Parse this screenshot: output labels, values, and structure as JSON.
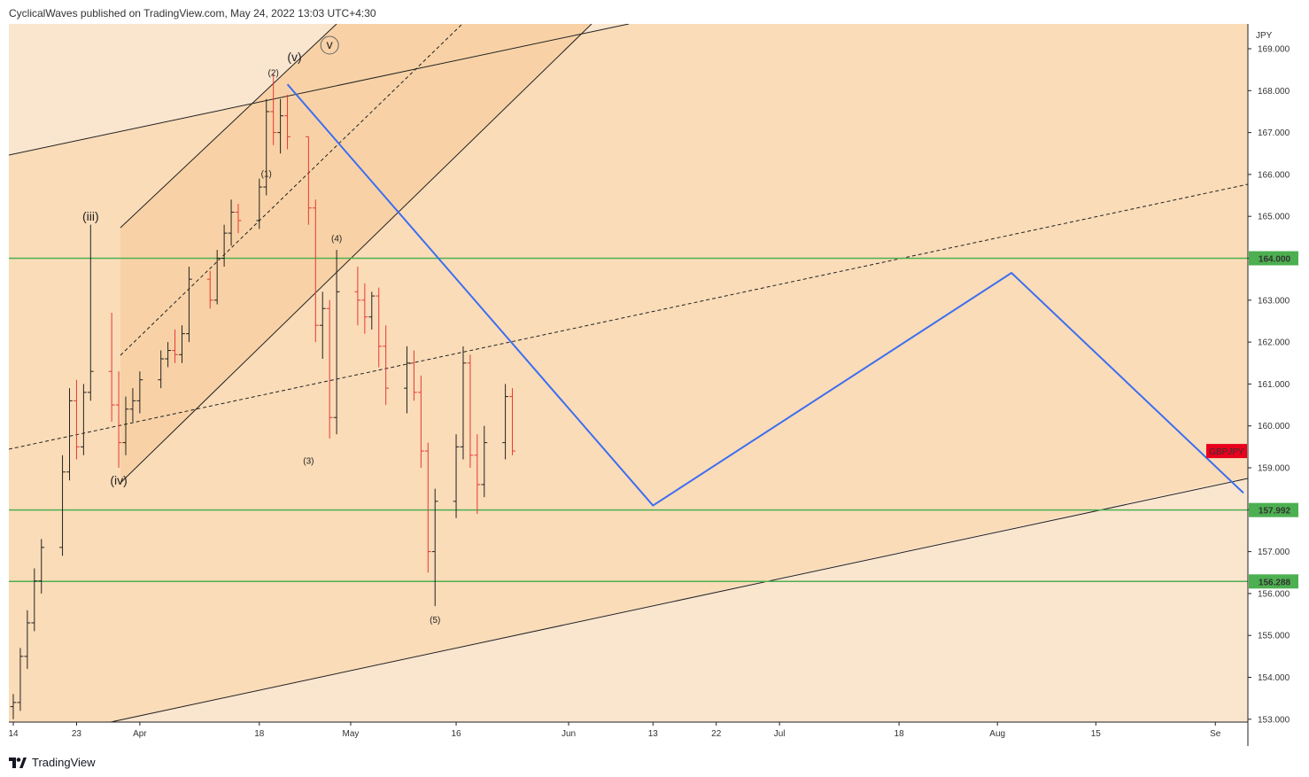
{
  "header": {
    "text": "CyclicalWaves published on TradingView.com, May 24, 2022 13:03 UTC+4:30"
  },
  "footer": {
    "brand": "TradingView"
  },
  "colors": {
    "plot_bg": "#fadcb8",
    "outer_band": "#fae5cf",
    "inner_channel": "#f8d2a6",
    "green_level": "#4caf50",
    "projection": "#3d6ef0",
    "candle_up": "#222222",
    "candle_down": "#e53935",
    "symbol_badge": "#e8001c"
  },
  "chart_data": {
    "type": "candlestick",
    "symbol": "GBPJPY",
    "currency": "JPY",
    "ylim": [
      153,
      169.5
    ],
    "y_ticks": [
      "169.000",
      "168.000",
      "167.000",
      "166.000",
      "165.000",
      "164.000",
      "163.000",
      "162.000",
      "161.000",
      "160.000",
      "159.000",
      "158.000",
      "157.000",
      "156.000",
      "155.000",
      "154.000",
      "153.000"
    ],
    "x_ticks": [
      "14",
      "23",
      "Apr",
      "18",
      "May",
      "16",
      "Jun",
      "13",
      "22",
      "Jul",
      "18",
      "Aug",
      "15",
      "Se"
    ],
    "horizontal_levels": [
      {
        "label": "164.000",
        "value": 164.0
      },
      {
        "label": "157.992",
        "value": 157.992
      },
      {
        "label": "156.288",
        "value": 156.288
      }
    ],
    "price_label": {
      "label": "GBPJPY",
      "value": 159.4
    },
    "wave_labels": [
      {
        "text": "(iii)",
        "date": "2022-03-25",
        "price": 164.9
      },
      {
        "text": "(iv)",
        "date": "2022-03-29",
        "price": 158.6
      },
      {
        "text": "(2)",
        "date": "2022-04-20",
        "price": 168.35
      },
      {
        "text": "(v)",
        "date": "2022-04-23",
        "price": 168.7
      },
      {
        "text": "v",
        "date": "2022-04-28",
        "price": 169.0
      },
      {
        "text": "(1)",
        "date": "2022-04-19",
        "price": 165.95
      },
      {
        "text": "(4)",
        "date": "2022-04-29",
        "price": 164.4
      },
      {
        "text": "(3)",
        "date": "2022-04-25",
        "price": 159.1
      },
      {
        "text": "(5)",
        "date": "2022-05-13",
        "price": 155.3
      }
    ],
    "projection_path": [
      {
        "date": "2022-04-22",
        "price": 168.15
      },
      {
        "date": "2022-06-13",
        "price": 158.1
      },
      {
        "date": "2022-08-03",
        "price": 163.65
      },
      {
        "date": "2022-09-05",
        "price": 158.4
      }
    ],
    "candles": [
      {
        "date": "2022-03-14",
        "open": 153.3,
        "high": 153.6,
        "low": 153.0,
        "close": 153.4
      },
      {
        "date": "2022-03-15",
        "open": 153.4,
        "high": 154.7,
        "low": 153.2,
        "close": 154.5
      },
      {
        "date": "2022-03-16",
        "open": 154.5,
        "high": 155.6,
        "low": 154.2,
        "close": 155.3
      },
      {
        "date": "2022-03-17",
        "open": 155.3,
        "high": 156.6,
        "low": 155.1,
        "close": 156.3
      },
      {
        "date": "2022-03-18",
        "open": 156.3,
        "high": 157.3,
        "low": 156.0,
        "close": 157.1
      },
      {
        "date": "2022-03-21",
        "open": 157.1,
        "high": 159.3,
        "low": 156.9,
        "close": 158.9
      },
      {
        "date": "2022-03-22",
        "open": 158.9,
        "high": 160.9,
        "low": 158.7,
        "close": 160.6
      },
      {
        "date": "2022-03-23",
        "open": 160.6,
        "high": 161.1,
        "low": 159.2,
        "close": 159.5
      },
      {
        "date": "2022-03-24",
        "open": 159.5,
        "high": 161.0,
        "low": 159.3,
        "close": 160.8
      },
      {
        "date": "2022-03-25",
        "open": 160.8,
        "high": 164.8,
        "low": 160.6,
        "close": 161.3
      },
      {
        "date": "2022-03-28",
        "open": 161.3,
        "high": 162.7,
        "low": 160.1,
        "close": 160.5
      },
      {
        "date": "2022-03-29",
        "open": 160.5,
        "high": 161.3,
        "low": 159.0,
        "close": 159.6
      },
      {
        "date": "2022-03-30",
        "open": 159.6,
        "high": 160.7,
        "low": 159.3,
        "close": 160.4
      },
      {
        "date": "2022-03-31",
        "open": 160.4,
        "high": 160.9,
        "low": 160.1,
        "close": 160.6
      },
      {
        "date": "2022-04-01",
        "open": 160.6,
        "high": 161.3,
        "low": 160.3,
        "close": 161.1
      },
      {
        "date": "2022-04-04",
        "open": 161.1,
        "high": 161.8,
        "low": 160.9,
        "close": 161.6
      },
      {
        "date": "2022-04-05",
        "open": 161.6,
        "high": 162.0,
        "low": 161.4,
        "close": 161.8
      },
      {
        "date": "2022-04-06",
        "open": 161.8,
        "high": 162.3,
        "low": 161.5,
        "close": 161.7
      },
      {
        "date": "2022-04-07",
        "open": 161.7,
        "high": 162.4,
        "low": 161.5,
        "close": 162.2
      },
      {
        "date": "2022-04-08",
        "open": 162.2,
        "high": 163.8,
        "low": 162.0,
        "close": 163.5
      },
      {
        "date": "2022-04-11",
        "open": 163.5,
        "high": 163.7,
        "low": 162.8,
        "close": 163.0
      },
      {
        "date": "2022-04-12",
        "open": 163.0,
        "high": 164.2,
        "low": 162.9,
        "close": 164.0
      },
      {
        "date": "2022-04-13",
        "open": 164.0,
        "high": 164.8,
        "low": 163.8,
        "close": 164.6
      },
      {
        "date": "2022-04-14",
        "open": 164.6,
        "high": 165.4,
        "low": 164.3,
        "close": 165.1
      },
      {
        "date": "2022-04-15",
        "open": 165.1,
        "high": 165.3,
        "low": 164.6,
        "close": 164.9
      },
      {
        "date": "2022-04-18",
        "open": 164.9,
        "high": 165.9,
        "low": 164.7,
        "close": 165.7
      },
      {
        "date": "2022-04-19",
        "open": 165.7,
        "high": 167.8,
        "low": 165.5,
        "close": 167.5
      },
      {
        "date": "2022-04-20",
        "open": 167.5,
        "high": 168.4,
        "low": 166.7,
        "close": 167.0
      },
      {
        "date": "2022-04-21",
        "open": 167.0,
        "high": 167.8,
        "low": 166.5,
        "close": 167.4
      },
      {
        "date": "2022-04-22",
        "open": 167.4,
        "high": 167.9,
        "low": 166.6,
        "close": 166.9
      },
      {
        "date": "2022-04-25",
        "open": 166.9,
        "high": 166.9,
        "low": 164.8,
        "close": 165.2
      },
      {
        "date": "2022-04-26",
        "open": 165.2,
        "high": 165.4,
        "low": 162.0,
        "close": 162.4
      },
      {
        "date": "2022-04-27",
        "open": 162.4,
        "high": 163.2,
        "low": 161.6,
        "close": 162.8
      },
      {
        "date": "2022-04-28",
        "open": 162.8,
        "high": 163.0,
        "low": 159.7,
        "close": 160.2
      },
      {
        "date": "2022-04-29",
        "open": 160.2,
        "high": 164.2,
        "low": 159.8,
        "close": 163.2
      },
      {
        "date": "2022-05-02",
        "open": 163.2,
        "high": 163.8,
        "low": 162.4,
        "close": 163.0
      },
      {
        "date": "2022-05-03",
        "open": 163.0,
        "high": 163.4,
        "low": 162.2,
        "close": 162.6
      },
      {
        "date": "2022-05-04",
        "open": 162.6,
        "high": 163.2,
        "low": 162.3,
        "close": 163.1
      },
      {
        "date": "2022-05-05",
        "open": 163.1,
        "high": 163.3,
        "low": 161.4,
        "close": 161.9
      },
      {
        "date": "2022-05-06",
        "open": 161.9,
        "high": 162.4,
        "low": 160.5,
        "close": 160.9
      },
      {
        "date": "2022-05-09",
        "open": 160.9,
        "high": 161.9,
        "low": 160.3,
        "close": 161.5
      },
      {
        "date": "2022-05-10",
        "open": 161.5,
        "high": 161.8,
        "low": 160.6,
        "close": 160.8
      },
      {
        "date": "2022-05-11",
        "open": 160.8,
        "high": 161.2,
        "low": 159.0,
        "close": 159.4
      },
      {
        "date": "2022-05-12",
        "open": 159.4,
        "high": 159.6,
        "low": 156.5,
        "close": 157.0
      },
      {
        "date": "2022-05-13",
        "open": 157.0,
        "high": 158.5,
        "low": 155.7,
        "close": 158.2
      },
      {
        "date": "2022-05-16",
        "open": 158.2,
        "high": 159.8,
        "low": 157.8,
        "close": 159.5
      },
      {
        "date": "2022-05-17",
        "open": 159.5,
        "high": 161.9,
        "low": 159.2,
        "close": 161.5
      },
      {
        "date": "2022-05-18",
        "open": 161.5,
        "high": 161.7,
        "low": 159.0,
        "close": 159.3
      },
      {
        "date": "2022-05-19",
        "open": 159.3,
        "high": 159.8,
        "low": 157.9,
        "close": 158.6
      },
      {
        "date": "2022-05-20",
        "open": 158.6,
        "high": 160.0,
        "low": 158.3,
        "close": 159.6
      },
      {
        "date": "2022-05-23",
        "open": 159.6,
        "high": 161.0,
        "low": 159.2,
        "close": 160.7
      },
      {
        "date": "2022-05-24",
        "open": 160.7,
        "high": 160.9,
        "low": 159.3,
        "close": 159.4
      }
    ]
  }
}
